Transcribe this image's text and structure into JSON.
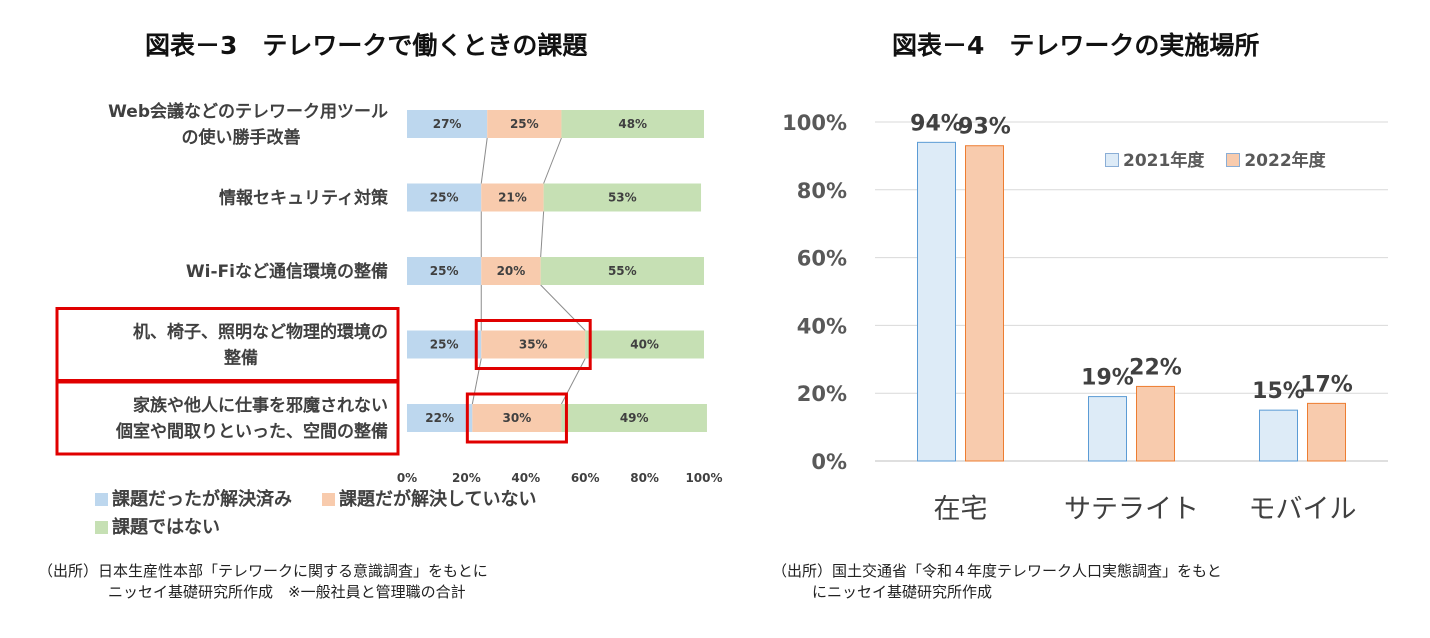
{
  "chart_data": [
    {
      "type": "bar",
      "stacked": true,
      "orientation": "horizontal",
      "title": "図表－3　テレワークで働くときの課題",
      "categories": [
        [
          "Web会議などのテレワーク用ツール",
          "の使い勝手改善"
        ],
        [
          "情報セキュリティ対策"
        ],
        [
          "Wi-Fiなど通信環境の整備"
        ],
        [
          "机、椅子、照明など物理的環境の",
          "整備"
        ],
        [
          "家族や他人に仕事を邪魔されない",
          "個室や間取りといった、空間の整備"
        ]
      ],
      "series": [
        {
          "name": "課題だったが解決済み",
          "color": "#bdd7ee",
          "values": [
            27,
            25,
            25,
            25,
            22
          ]
        },
        {
          "name": "課題だが解決していない",
          "color": "#f8cbad",
          "values": [
            25,
            21,
            20,
            35,
            30
          ]
        },
        {
          "name": "課題ではない",
          "color": "#c6e0b4",
          "values": [
            48,
            53,
            55,
            40,
            49
          ]
        }
      ],
      "value_suffix": "%",
      "xlim": [
        0,
        100
      ],
      "xticks": [
        "0%",
        "20%",
        "40%",
        "60%",
        "80%",
        "100%"
      ],
      "highlighted_categories": [
        3,
        4
      ],
      "highlight_color": "#e00000",
      "series_lines": true,
      "legend_position": "bottom",
      "grid": false
    },
    {
      "type": "bar",
      "title": "図表－4　テレワークの実施場所",
      "categories": [
        "在宅",
        "サテライト",
        "モバイル"
      ],
      "series": [
        {
          "name": "2021年度",
          "color": "#ddebf7",
          "values": [
            94,
            19,
            15
          ]
        },
        {
          "name": "2022年度",
          "color": "#f8cbad",
          "values": [
            93,
            22,
            17
          ]
        }
      ],
      "value_suffix": "%",
      "ylim": [
        0,
        100
      ],
      "yticks": [
        "0%",
        "20%",
        "40%",
        "60%",
        "80%",
        "100%"
      ],
      "legend_position": "top-right",
      "grid": true
    }
  ],
  "sources": {
    "left": [
      "（出所）日本生産性本部「テレワークに関する意識調査」をもとに",
      "ニッセイ基礎研究所作成　※一般社員と管理職の合計"
    ],
    "right": [
      "（出所）国土交通省「令和４年度テレワーク人口実態調査」をもと",
      "にニッセイ基礎研究所作成"
    ]
  }
}
